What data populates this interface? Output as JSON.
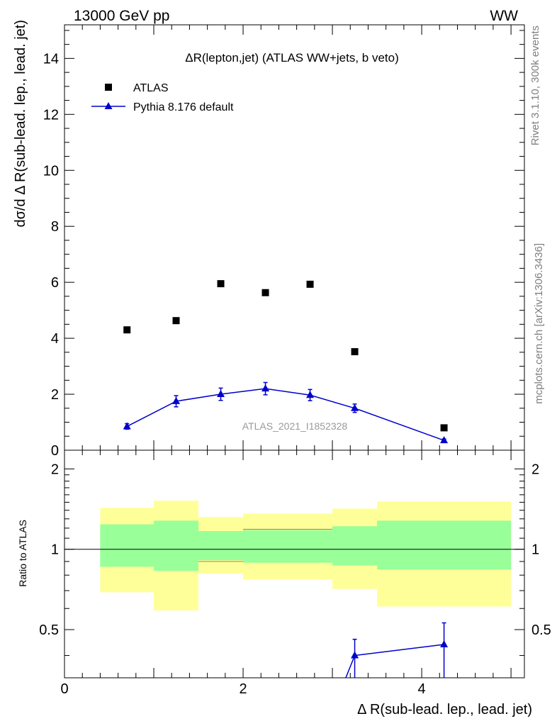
{
  "header": {
    "left": "13000 GeV pp",
    "right": "WW"
  },
  "side_labels": {
    "rivet": "Rivet 3.1.10,  300k events",
    "mcplots": "mcplots.cern.ch [arXiv:1306.3436]"
  },
  "chart_data": [
    {
      "type": "scatter",
      "panel": "main",
      "title": "ΔR(lepton,jet) (ATLAS WW+jets, b veto)",
      "watermark": "ATLAS_2021_I1852328",
      "ylabel": "dσ/d Δ R(sub-lead. lep., lead. jet)",
      "xlim": [
        0,
        5.15
      ],
      "ylim": [
        0,
        15.2
      ],
      "yticks": [
        0,
        2,
        4,
        6,
        8,
        10,
        12,
        14
      ],
      "ytick_labels": [
        "0",
        "2",
        "4",
        "6",
        "8",
        "10",
        "12",
        "14"
      ],
      "legend_position": "top-left",
      "series": [
        {
          "name": "ATLAS",
          "marker": "square",
          "color": "#000000",
          "points": [
            {
              "x": 0.7,
              "y": 4.3
            },
            {
              "x": 1.25,
              "y": 4.63
            },
            {
              "x": 1.75,
              "y": 5.95
            },
            {
              "x": 2.25,
              "y": 5.63
            },
            {
              "x": 2.75,
              "y": 5.93
            },
            {
              "x": 3.25,
              "y": 3.52
            },
            {
              "x": 4.25,
              "y": 0.8
            }
          ]
        },
        {
          "name": "Pythia 8.176 default",
          "marker": "triangle",
          "color": "#0000cc",
          "points": [
            {
              "x": 0.7,
              "y": 0.85,
              "err": 0.1
            },
            {
              "x": 1.25,
              "y": 1.75,
              "err": 0.2
            },
            {
              "x": 1.75,
              "y": 2.0,
              "err": 0.22
            },
            {
              "x": 2.25,
              "y": 2.2,
              "err": 0.22
            },
            {
              "x": 2.75,
              "y": 1.97,
              "err": 0.2
            },
            {
              "x": 3.25,
              "y": 1.5,
              "err": 0.15
            },
            {
              "x": 4.25,
              "y": 0.35,
              "err": 0.05
            }
          ]
        }
      ]
    },
    {
      "type": "area",
      "panel": "ratio",
      "ylabel": "Ratio to ATLAS",
      "xlabel": "Δ R(sub-lead. lep., lead. jet)",
      "xlim": [
        0,
        5.15
      ],
      "ylim": [
        0.33,
        2.35
      ],
      "xticks": [
        0,
        2,
        4
      ],
      "xtick_labels": [
        "0",
        "2",
        "4"
      ],
      "yticks": [
        0.5,
        1,
        2
      ],
      "ytick_labels": [
        "0.5",
        "1",
        "2"
      ],
      "bands": {
        "edges": [
          0.4,
          1.0,
          1.5,
          2.0,
          3.0,
          3.5,
          5.0
        ],
        "yellow_low": [
          0.69,
          0.59,
          0.81,
          0.77,
          0.71,
          0.61
        ],
        "yellow_high": [
          1.43,
          1.52,
          1.32,
          1.36,
          1.42,
          1.51
        ],
        "green_low": [
          0.86,
          0.83,
          0.91,
          0.89,
          0.87,
          0.84
        ],
        "green_high": [
          1.24,
          1.28,
          1.17,
          1.18,
          1.22,
          1.28
        ]
      },
      "edge_segments": [
        {
          "bin": 2,
          "y": 0.9
        },
        {
          "bin": 3,
          "y": 1.19
        }
      ],
      "reference_line": 1,
      "series": [
        {
          "name": "Pythia 8.176 default",
          "color": "#0000cc",
          "points": [
            {
              "x": 3.25,
              "y": 0.4,
              "err_up": 0.06,
              "err_down": 0.07
            },
            {
              "x": 4.25,
              "y": 0.44,
              "err_up": 0.09,
              "err_down": 0.11
            }
          ]
        }
      ]
    }
  ]
}
